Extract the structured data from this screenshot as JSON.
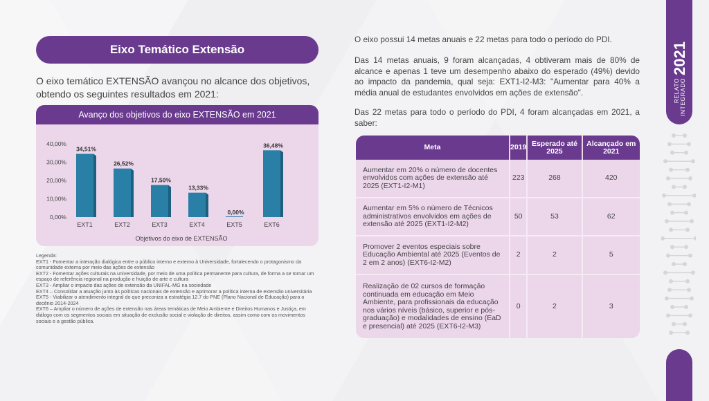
{
  "left": {
    "title": "Eixo Temático Extensão",
    "intro": "O eixo temático EXTENSÃO avançou no alcance dos objetivos, obtendo os seguintes resultados em 2021:",
    "legend": {
      "heading": "Legenda:",
      "items": [
        "EXT1 - Fomentar a interação dialógica entre o público interno e externo à Universidade, fortalecendo o protagonismo da comunidade externa por meio das ações de extensão",
        "EXT2 - Fomentar ações culturais na universidade, por meio de uma política permanente para cultura, de forma a se tornar um espaço de referência regional na produção e fruição de arte e cultura",
        "EXT3 - Ampliar o impacto das ações de extensão da UNIFAL-MG na sociedade",
        "EXT4 – Consolidar a atuação junto às políticas nacionais de extensão e aprimorar a política interna de extensão universitária",
        "EXT5 - Viabilizar o atendimento integral do que preconiza a estratégia 12.7 do PNE (Plano Nacional de Educação) para o decênio 2014-2024",
        "EXT6 – Ampliar o número de ações de extensão nas áreas temáticas de Meio Ambiente e Direitos Humanos e Justiça, em diálogo com os segmentos sociais em situação de exclusão social e violação de direitos, assim como com os movimentos sociais e a gestão pública."
      ]
    }
  },
  "chart_data": {
    "type": "bar",
    "title": "Avanço dos objetivos do eixo EXTENSÃO em 2021",
    "xlabel": "Objetivos do eixo de EXTENSÃO",
    "ylabel": "",
    "categories": [
      "EXT1",
      "EXT2",
      "EXT3",
      "EXT4",
      "EXT5",
      "EXT6"
    ],
    "values": [
      34.51,
      26.52,
      17.5,
      13.33,
      0.0,
      36.48
    ],
    "data_labels": [
      "34,51%",
      "26,52%",
      "17,50%",
      "13,33%",
      "0,00%",
      "36,48%"
    ],
    "y_ticks": [
      "0,00%",
      "10,00%",
      "20,00%",
      "30,00%",
      "40,00%"
    ],
    "ylim": [
      0,
      40
    ],
    "bar_color": "#2a7fa6",
    "grid": false
  },
  "right": {
    "para1": "O eixo possui 14 metas anuais e 22 metas para todo o período do PDI.",
    "para2": "Das 14 metas anuais, 9 foram alcançadas, 4 obtiveram mais de 80% de alcance e apenas 1 teve um desempenho abaixo do esperado (49%) devido ao impacto da pandemia, qual seja: EXT1-I2-M3: \"Aumentar para 40% a média anual de estudantes envolvidos em ações de extensão\".",
    "para3": "Das 22 metas para todo o período do PDI, 4 foram alcançadas em 2021, a saber:",
    "table": {
      "headers": [
        "Meta",
        "2019",
        "Esperado até 2025",
        "Alcançado em 2021"
      ],
      "rows": [
        {
          "meta": "Aumentar em 20% o número de docentes envolvidos com ações de extensão até 2025 (EXT1-I2-M1)",
          "y2019": "223",
          "esperado": "268",
          "alcancado": "420"
        },
        {
          "meta": "Aumentar em 5% o número de Técnicos administrativos envolvidos em ações de extensão até 2025 (EXT1-I2-M2)",
          "y2019": "50",
          "esperado": "53",
          "alcancado": "62"
        },
        {
          "meta": "Promover 2 eventos especiais sobre Educação Ambiental até 2025 (Eventos de 2 em 2 anos) (EXT6-I2-M2)",
          "y2019": "2",
          "esperado": "2",
          "alcancado": "5"
        },
        {
          "meta": "Realização de 02 cursos de formação continuada em educação em Meio Ambiente, para profissionais da educação nos vários níveis (básico, superior e pós-graduação) e modalidades de ensino (EaD e presencial) até 2025 (EXT6-I2-M3)",
          "y2019": "0",
          "esperado": "2",
          "alcancado": "3"
        }
      ]
    }
  },
  "brand": {
    "line1": "RELATO",
    "line2": "INTEGRADO",
    "year": "2021",
    "color": "#6a3a8f"
  }
}
